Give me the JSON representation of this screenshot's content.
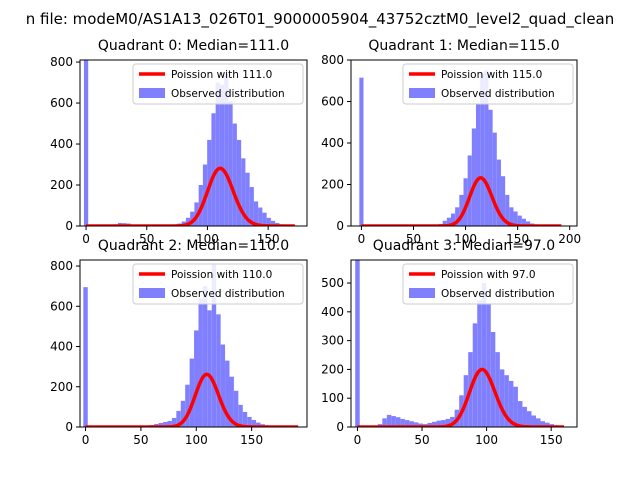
{
  "figure": {
    "suptitle": "n file: modeM0/AS1A13_026T01_9000005904_43752cztM0_level2_quad_clean"
  },
  "colors": {
    "hist": "#8080ff",
    "poisson": "#ff0000",
    "axes": "#000000",
    "background": "#ffffff"
  },
  "chart_data": [
    {
      "type": "bar+line",
      "title": "Quadrant 0: Median=111.0",
      "median": 111.0,
      "xlim": [
        -5,
        182
      ],
      "ylim": [
        0,
        810
      ],
      "xticks": [
        0,
        50,
        100,
        150
      ],
      "yticks": [
        0,
        200,
        400,
        600,
        800
      ],
      "legend": {
        "placement": "top-right",
        "entries": [
          "Poission with 111.0",
          "Observed distribution"
        ]
      },
      "hist": {
        "name": "Observed distribution",
        "bin_width": 3.5,
        "points": [
          [
            0,
            810
          ],
          [
            14,
            3
          ],
          [
            17.5,
            5
          ],
          [
            21,
            5
          ],
          [
            24.5,
            8
          ],
          [
            28,
            15
          ],
          [
            31.5,
            14
          ],
          [
            35,
            12
          ],
          [
            38.5,
            5
          ],
          [
            42,
            3
          ],
          [
            45.5,
            2
          ],
          [
            70,
            4
          ],
          [
            73.5,
            8
          ],
          [
            77,
            12
          ],
          [
            80.5,
            22
          ],
          [
            84,
            40
          ],
          [
            87.5,
            70
          ],
          [
            91,
            115
          ],
          [
            94.5,
            200
          ],
          [
            98,
            300
          ],
          [
            101.5,
            420
          ],
          [
            105,
            550
          ],
          [
            108.5,
            700
          ],
          [
            112,
            690
          ],
          [
            115.5,
            740
          ],
          [
            119,
            610
          ],
          [
            122.5,
            500
          ],
          [
            126,
            420
          ],
          [
            129.5,
            330
          ],
          [
            133,
            260
          ],
          [
            136.5,
            190
          ],
          [
            140,
            120
          ],
          [
            143.5,
            90
          ],
          [
            147,
            65
          ],
          [
            150.5,
            40
          ],
          [
            154,
            25
          ],
          [
            157.5,
            15
          ],
          [
            161,
            8
          ],
          [
            164.5,
            4
          ],
          [
            168,
            2
          ]
        ]
      },
      "poisson": {
        "name": "Poission with 111.0",
        "mean": 111.0,
        "scale": 3.5,
        "x_range": [
          0,
          172
        ]
      }
    },
    {
      "type": "bar+line",
      "title": "Quadrant 1: Median=115.0",
      "median": 115.0,
      "xlim": [
        -10,
        207
      ],
      "ylim": [
        0,
        800
      ],
      "xticks": [
        0,
        50,
        100,
        150,
        200
      ],
      "yticks": [
        0,
        200,
        400,
        600,
        800
      ],
      "legend": {
        "placement": "top-right",
        "entries": [
          "Poission with 115.0",
          "Observed distribution"
        ]
      },
      "hist": {
        "name": "Observed distribution",
        "bin_width": 4,
        "points": [
          [
            0,
            715
          ],
          [
            72,
            5
          ],
          [
            76,
            10
          ],
          [
            80,
            25
          ],
          [
            84,
            40
          ],
          [
            88,
            60
          ],
          [
            92,
            90
          ],
          [
            96,
            150
          ],
          [
            100,
            230
          ],
          [
            104,
            340
          ],
          [
            108,
            470
          ],
          [
            112,
            590
          ],
          [
            116,
            740
          ],
          [
            120,
            750
          ],
          [
            124,
            560
          ],
          [
            128,
            450
          ],
          [
            132,
            320
          ],
          [
            136,
            240
          ],
          [
            140,
            150
          ],
          [
            144,
            90
          ],
          [
            148,
            70
          ],
          [
            152,
            50
          ],
          [
            156,
            35
          ],
          [
            160,
            22
          ],
          [
            164,
            12
          ],
          [
            168,
            8
          ],
          [
            172,
            5
          ],
          [
            176,
            3
          ],
          [
            180,
            2
          ],
          [
            184,
            1
          ],
          [
            188,
            1
          ]
        ]
      },
      "poisson": {
        "name": "Poission with 115.0",
        "mean": 115.0,
        "scale": 4,
        "x_range": [
          0,
          192
        ]
      }
    },
    {
      "type": "bar+line",
      "title": "Quadrant 2: Median=110.0",
      "median": 110.0,
      "xlim": [
        -5,
        200
      ],
      "ylim": [
        0,
        830
      ],
      "xticks": [
        0,
        50,
        100,
        150
      ],
      "yticks": [
        0,
        200,
        400,
        600,
        800
      ],
      "legend": {
        "placement": "top-right",
        "entries": [
          "Poission with 110.0",
          "Observed distribution"
        ]
      },
      "hist": {
        "name": "Observed distribution",
        "bin_width": 4,
        "points": [
          [
            0,
            695
          ],
          [
            56,
            5
          ],
          [
            60,
            10
          ],
          [
            64,
            15
          ],
          [
            68,
            20
          ],
          [
            72,
            25
          ],
          [
            76,
            30
          ],
          [
            80,
            45
          ],
          [
            84,
            80
          ],
          [
            88,
            130
          ],
          [
            92,
            210
          ],
          [
            96,
            340
          ],
          [
            100,
            480
          ],
          [
            104,
            640
          ],
          [
            108,
            700
          ],
          [
            112,
            580
          ],
          [
            116,
            810
          ],
          [
            120,
            560
          ],
          [
            124,
            410
          ],
          [
            128,
            330
          ],
          [
            132,
            250
          ],
          [
            136,
            180
          ],
          [
            140,
            110
          ],
          [
            144,
            75
          ],
          [
            148,
            50
          ],
          [
            152,
            35
          ],
          [
            156,
            22
          ],
          [
            160,
            14
          ],
          [
            164,
            9
          ],
          [
            168,
            6
          ],
          [
            172,
            4
          ],
          [
            176,
            3
          ],
          [
            180,
            2
          ],
          [
            184,
            1
          ]
        ]
      },
      "poisson": {
        "name": "Poission with 110.0",
        "mean": 110.0,
        "scale": 4,
        "x_range": [
          0,
          192
        ]
      }
    },
    {
      "type": "bar+line",
      "title": "Quadrant 3: Median=97.0",
      "median": 97.0,
      "xlim": [
        -5,
        170
      ],
      "ylim": [
        0,
        580
      ],
      "xticks": [
        0,
        50,
        100,
        150
      ],
      "yticks": [
        0,
        100,
        200,
        300,
        400,
        500
      ],
      "legend": {
        "placement": "top-right",
        "entries": [
          "Poission with 97.0",
          "Observed distribution"
        ]
      },
      "hist": {
        "name": "Observed distribution",
        "bin_width": 3.5,
        "points": [
          [
            0,
            580
          ],
          [
            17.5,
            10
          ],
          [
            21,
            30
          ],
          [
            24.5,
            42
          ],
          [
            28,
            38
          ],
          [
            31.5,
            34
          ],
          [
            35,
            28
          ],
          [
            38.5,
            24
          ],
          [
            42,
            20
          ],
          [
            45.5,
            16
          ],
          [
            49,
            12
          ],
          [
            52.5,
            10
          ],
          [
            56,
            14
          ],
          [
            59.5,
            18
          ],
          [
            63,
            22
          ],
          [
            66.5,
            24
          ],
          [
            70,
            28
          ],
          [
            73.5,
            35
          ],
          [
            77,
            60
          ],
          [
            80.5,
            110
          ],
          [
            84,
            180
          ],
          [
            87.5,
            260
          ],
          [
            91,
            360
          ],
          [
            94.5,
            440
          ],
          [
            98,
            500
          ],
          [
            101.5,
            430
          ],
          [
            105,
            330
          ],
          [
            108.5,
            260
          ],
          [
            112,
            200
          ],
          [
            115.5,
            180
          ],
          [
            119,
            160
          ],
          [
            122.5,
            140
          ],
          [
            126,
            90
          ],
          [
            129.5,
            70
          ],
          [
            133,
            55
          ],
          [
            136.5,
            40
          ],
          [
            140,
            30
          ],
          [
            143.5,
            20
          ],
          [
            147,
            15
          ],
          [
            150.5,
            10
          ],
          [
            154,
            6
          ],
          [
            157.5,
            3
          ]
        ]
      },
      "poisson": {
        "name": "Poission with 97.0",
        "mean": 97.0,
        "scale": 3.5,
        "x_range": [
          0,
          160
        ]
      }
    }
  ]
}
